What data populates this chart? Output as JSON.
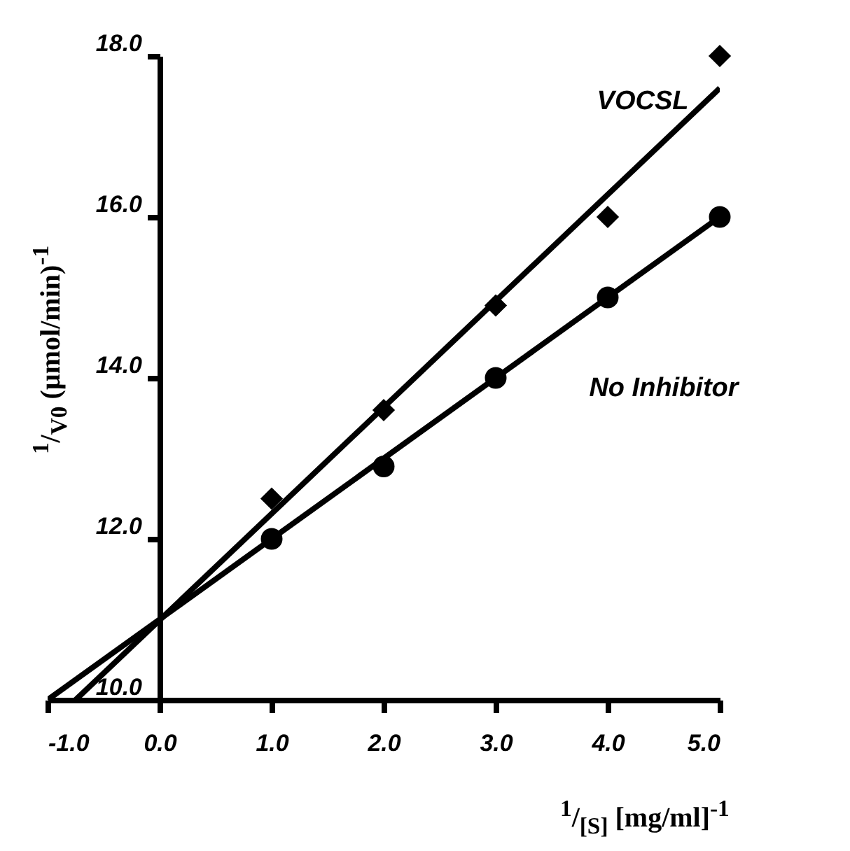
{
  "chart_data": {
    "type": "scatter",
    "xlabel": "$^{1}$/$_{[S]}$ [mg/ml]$^{-1}$",
    "ylabel": "$^{1}$/$_{V0}$ (µmol/min)$^{-1}$",
    "xlim": [
      -1,
      5
    ],
    "xticks": [
      {
        "value": -1,
        "label": "-1.0"
      },
      {
        "value": 0,
        "label": "0.0"
      },
      {
        "value": 1,
        "label": "1.0"
      },
      {
        "value": 2,
        "label": "2.0"
      },
      {
        "value": 3,
        "label": "3.0"
      },
      {
        "value": 4,
        "label": "4.0"
      },
      {
        "value": 5,
        "label": "5.0"
      }
    ],
    "ylim": [
      10,
      18
    ],
    "yticks": [
      {
        "value": 10,
        "label": "10.0"
      },
      {
        "value": 12,
        "label": "12.0"
      },
      {
        "value": 14,
        "label": "14.0"
      },
      {
        "value": 16,
        "label": "16.0"
      },
      {
        "value": 18,
        "label": "18.0"
      }
    ],
    "grid": false,
    "series": [
      {
        "name": "VOCSL",
        "marker": "diamond",
        "color": "#000000",
        "x": [
          1,
          2,
          3,
          4,
          5
        ],
        "values": [
          12.5,
          13.6,
          14.9,
          16,
          18
        ]
      },
      {
        "name": "No Inhibitor",
        "marker": "circle",
        "color": "#000000",
        "x": [
          1,
          2,
          3,
          4,
          5
        ],
        "values": [
          12,
          12.9,
          14,
          15,
          16
        ]
      },
      {
        "type": "line",
        "color": "#000000",
        "x": [
          -0.75,
          5
        ],
        "values": [
          10,
          17.6
        ]
      },
      {
        "type": "line",
        "color": "#000000",
        "x": [
          -1,
          5
        ],
        "values": [
          10,
          16
        ]
      }
    ]
  }
}
